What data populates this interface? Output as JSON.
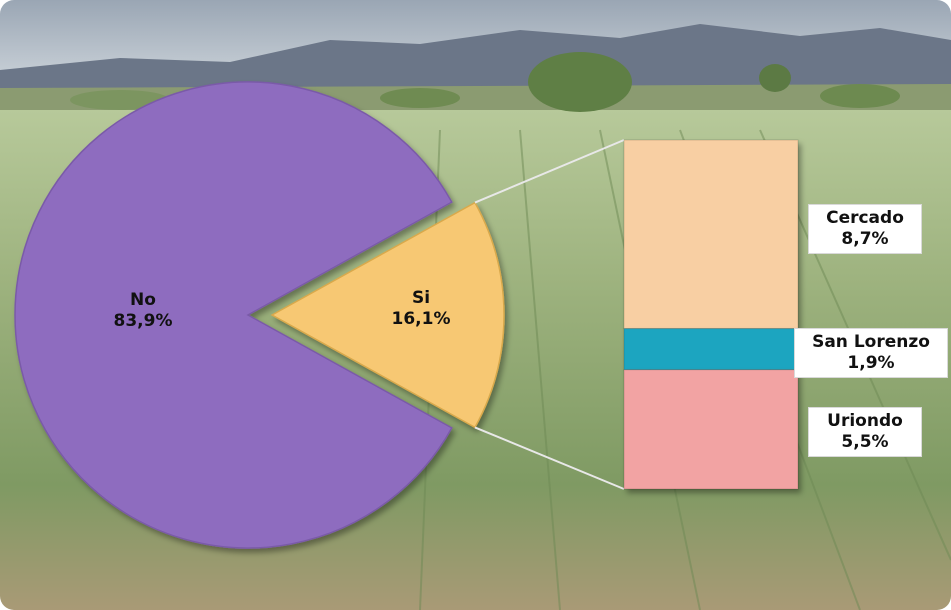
{
  "chart_data": {
    "type": "pie",
    "title": "",
    "slices": [
      {
        "label": "No",
        "value": 83.9,
        "value_text": "83,9%",
        "color": "#8e6cbf"
      },
      {
        "label": "Si",
        "value": 16.1,
        "value_text": "16,1%",
        "color": "#f7c873"
      }
    ],
    "breakdown": {
      "type": "stacked-bar",
      "of_slice": "Si",
      "segments": [
        {
          "label": "Cercado",
          "value": 8.7,
          "value_text": "8,7%",
          "color": "#f8cfa3"
        },
        {
          "label": "San Lorenzo",
          "value": 1.9,
          "value_text": "1,9%",
          "color": "#1fa5c0"
        },
        {
          "label": "Uriondo",
          "value": 5.5,
          "value_text": "5,5%",
          "color": "#f2a3a3"
        }
      ]
    },
    "legend": "none",
    "grid": false
  }
}
